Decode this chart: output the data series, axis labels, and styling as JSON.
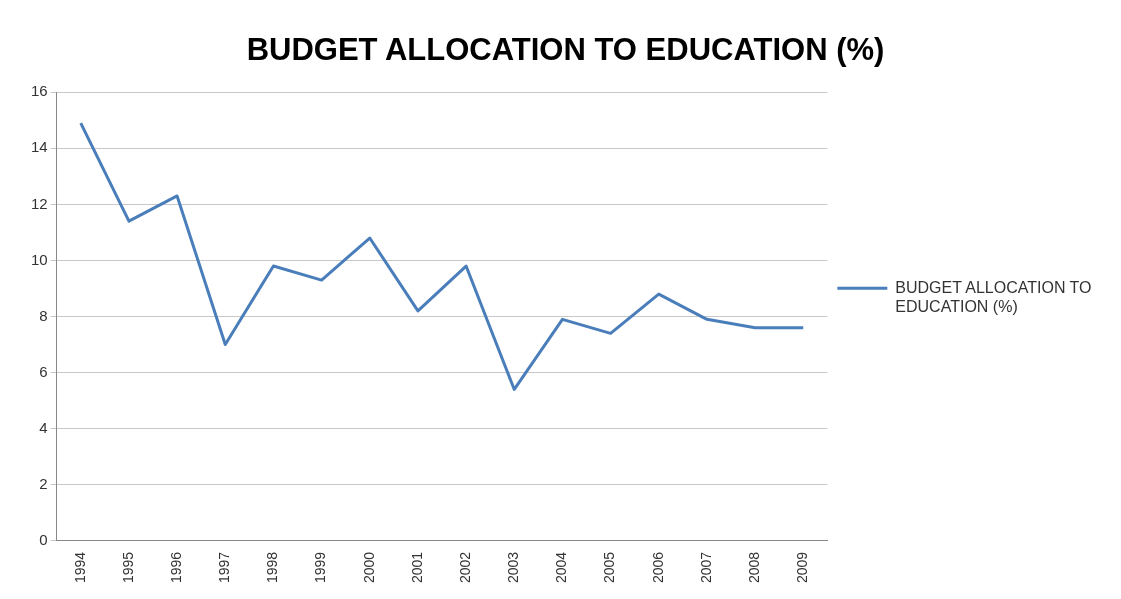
{
  "chart_data": {
    "type": "line",
    "title": "BUDGET ALLOCATION TO EDUCATION (%)",
    "categories": [
      "1994",
      "1995",
      "1996",
      "1997",
      "1998",
      "1999",
      "2000",
      "2001",
      "2002",
      "2003",
      "2004",
      "2005",
      "2006",
      "2007",
      "2008",
      "2009"
    ],
    "series": [
      {
        "name": "BUDGET ALLOCATION TO EDUCATION (%)",
        "color": "#4a7ebb",
        "values": [
          14.9,
          11.4,
          12.3,
          7.0,
          9.8,
          9.3,
          10.8,
          8.2,
          9.8,
          5.4,
          7.9,
          7.4,
          8.8,
          7.9,
          7.6,
          7.6
        ]
      }
    ],
    "ylim": [
      0,
      16
    ],
    "yticks": [
      0,
      2,
      4,
      6,
      8,
      10,
      12,
      14,
      16
    ],
    "grid": "y",
    "legend": "right",
    "marker": "none",
    "line_style": "solid"
  }
}
